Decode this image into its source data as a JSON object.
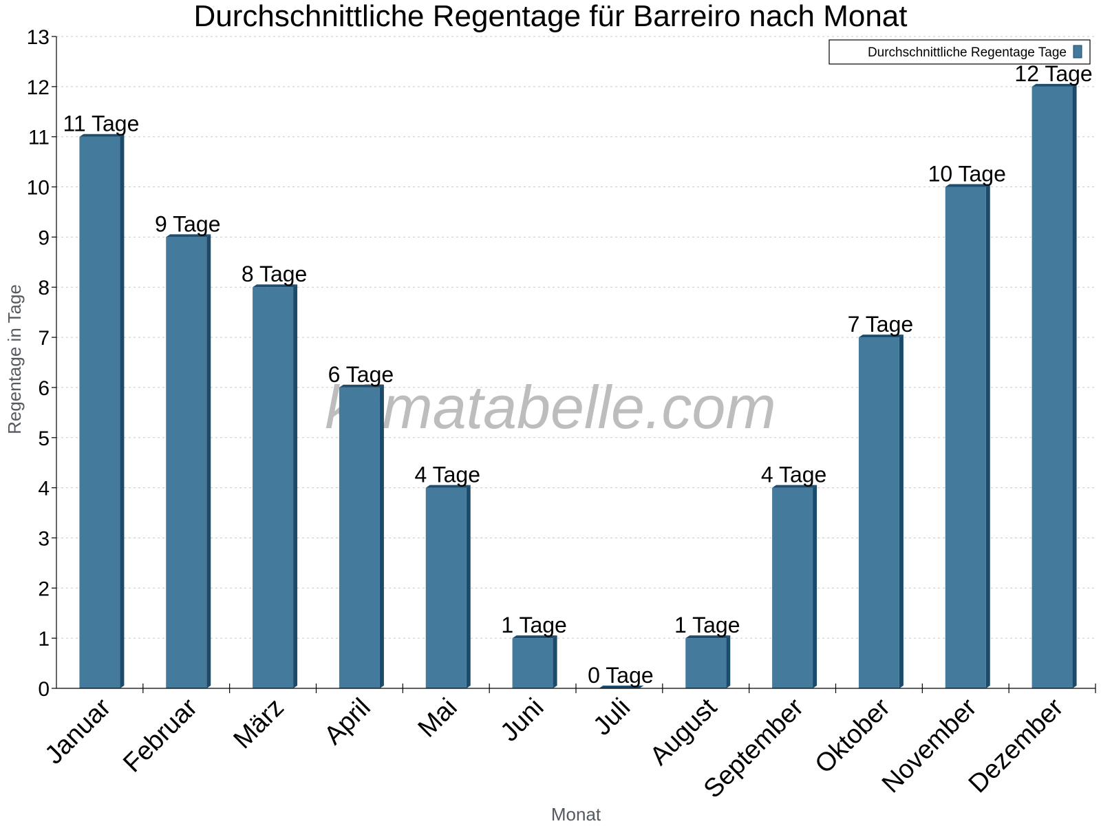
{
  "watermark": "klimatabelle.com",
  "chart_data": {
    "type": "bar",
    "title": "Durchschnittliche Regentage für Barreiro nach Monat",
    "xlabel": "Monat",
    "ylabel": "Regentage in Tage",
    "ylim": [
      0,
      13
    ],
    "yticks": [
      0,
      1,
      2,
      3,
      4,
      5,
      6,
      7,
      8,
      9,
      10,
      11,
      12,
      13
    ],
    "grid": true,
    "legend_position": "top-right",
    "categories": [
      "Januar",
      "Februar",
      "März",
      "April",
      "Mai",
      "Juni",
      "Juli",
      "August",
      "September",
      "Oktober",
      "November",
      "Dezember"
    ],
    "series": [
      {
        "name": "Durchschnittliche Regentage Tage",
        "values": [
          11,
          9,
          8,
          6,
          4,
          1,
          0,
          1,
          4,
          7,
          10,
          12
        ],
        "labels": [
          "11 Tage",
          "9 Tage",
          "8 Tage",
          "6 Tage",
          "4 Tage",
          "1 Tage",
          "0 Tage",
          "1 Tage",
          "4 Tage",
          "7 Tage",
          "10 Tage",
          "12 Tage"
        ],
        "color": "#447a9c",
        "side_color": "#1c4a6b",
        "top_color": "#1e4d6e"
      }
    ]
  }
}
